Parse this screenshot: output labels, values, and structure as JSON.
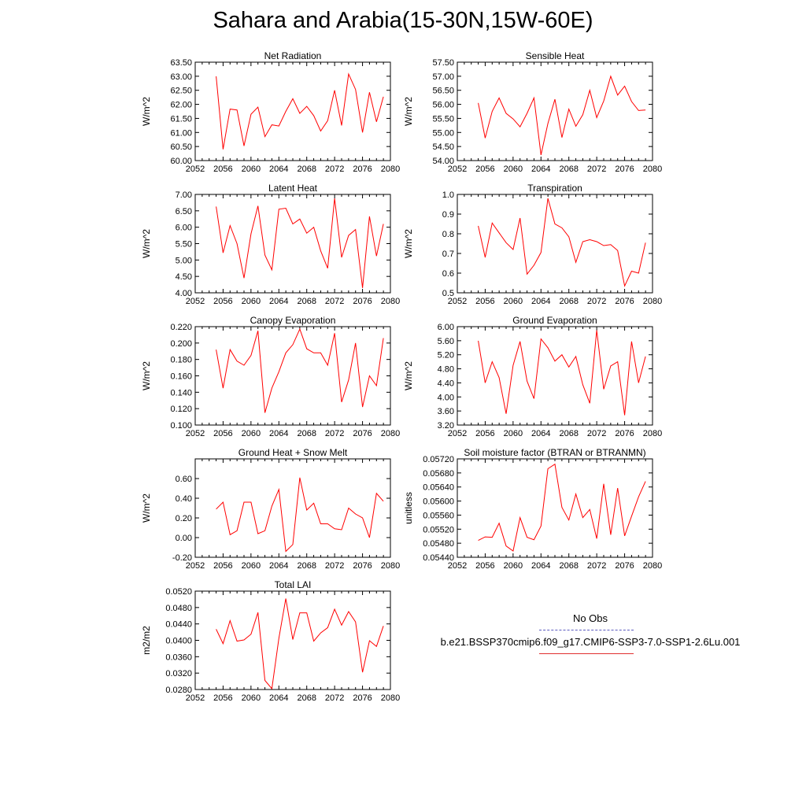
{
  "title": "Sahara and Arabia(15-30N,15W-60E)",
  "legend": {
    "obs_label": "No Obs",
    "case_label": "b.e21.BSSP370cmip6.f09_g17.CMIP6-SSP3-7.0-SSP1-2.6Lu.001",
    "obs_color": "#5b5bbf",
    "case_color": "#ff0000"
  },
  "chart_data": [
    {
      "type": "line",
      "title": "Net Radiation",
      "ylabel": "W/m^2",
      "xlim": [
        2052,
        2080
      ],
      "xticks": [
        "2052",
        "2056",
        "2060",
        "2064",
        "2068",
        "2072",
        "2076",
        "2080"
      ],
      "ylim": [
        60.0,
        63.5
      ],
      "yticks": [
        "60.00",
        "60.50",
        "61.00",
        "61.50",
        "62.00",
        "62.50",
        "63.00",
        "63.50"
      ],
      "x": [
        2055,
        2056,
        2057,
        2058,
        2059,
        2060,
        2061,
        2062,
        2063,
        2064,
        2065,
        2066,
        2067,
        2068,
        2069,
        2070,
        2071,
        2072,
        2073,
        2074,
        2075,
        2076,
        2077,
        2078,
        2079
      ],
      "series": [
        {
          "values": [
            63.0,
            60.4,
            61.83,
            61.8,
            60.52,
            61.65,
            61.9,
            60.85,
            61.27,
            61.23,
            61.75,
            62.2,
            61.68,
            61.93,
            61.6,
            61.05,
            61.42,
            62.5,
            61.25,
            63.08,
            62.53,
            61.0,
            62.43,
            61.38,
            62.27
          ]
        }
      ]
    },
    {
      "type": "line",
      "title": "Sensible Heat",
      "ylabel": "W/m^2",
      "xlim": [
        2052,
        2080
      ],
      "xticks": [
        "2052",
        "2056",
        "2060",
        "2064",
        "2068",
        "2072",
        "2076",
        "2080"
      ],
      "ylim": [
        54.0,
        57.5
      ],
      "yticks": [
        "54.00",
        "54.50",
        "55.00",
        "55.50",
        "56.00",
        "56.50",
        "57.00",
        "57.50"
      ],
      "x": [
        2055,
        2056,
        2057,
        2058,
        2059,
        2060,
        2061,
        2062,
        2063,
        2064,
        2065,
        2066,
        2067,
        2068,
        2069,
        2070,
        2071,
        2072,
        2073,
        2074,
        2075,
        2076,
        2077,
        2078,
        2079
      ],
      "series": [
        {
          "values": [
            56.05,
            54.8,
            55.75,
            56.23,
            55.68,
            55.48,
            55.2,
            55.68,
            56.23,
            54.2,
            55.32,
            56.18,
            54.82,
            55.83,
            55.22,
            55.63,
            56.5,
            55.53,
            56.12,
            57.0,
            56.33,
            56.65,
            56.1,
            55.78,
            55.8
          ]
        }
      ]
    },
    {
      "type": "line",
      "title": "Latent Heat",
      "ylabel": "W/m^2",
      "xlim": [
        2052,
        2080
      ],
      "xticks": [
        "2052",
        "2056",
        "2060",
        "2064",
        "2068",
        "2072",
        "2076",
        "2080"
      ],
      "ylim": [
        4.0,
        7.0
      ],
      "yticks": [
        "4.00",
        "4.50",
        "5.00",
        "5.50",
        "6.00",
        "6.50",
        "7.00"
      ],
      "x": [
        2055,
        2056,
        2057,
        2058,
        2059,
        2060,
        2061,
        2062,
        2063,
        2064,
        2065,
        2066,
        2067,
        2068,
        2069,
        2070,
        2071,
        2072,
        2073,
        2074,
        2075,
        2076,
        2077,
        2078,
        2079
      ],
      "series": [
        {
          "values": [
            6.63,
            5.22,
            6.05,
            5.5,
            4.45,
            5.8,
            6.65,
            5.15,
            4.7,
            6.55,
            6.58,
            6.1,
            6.25,
            5.82,
            6.0,
            5.28,
            4.75,
            6.88,
            5.08,
            5.75,
            5.93,
            4.15,
            6.33,
            5.12,
            6.1
          ]
        }
      ]
    },
    {
      "type": "line",
      "title": "Transpiration",
      "ylabel": "W/m^2",
      "xlim": [
        2052,
        2080
      ],
      "xticks": [
        "2052",
        "2056",
        "2060",
        "2064",
        "2068",
        "2072",
        "2076",
        "2080"
      ],
      "ylim": [
        0.5,
        1.0
      ],
      "yticks": [
        "0.5",
        "0.6",
        "0.7",
        "0.8",
        "0.9",
        "1.0"
      ],
      "x": [
        2055,
        2056,
        2057,
        2058,
        2059,
        2060,
        2061,
        2062,
        2063,
        2064,
        2065,
        2066,
        2067,
        2068,
        2069,
        2070,
        2071,
        2072,
        2073,
        2074,
        2075,
        2076,
        2077,
        2078,
        2079
      ],
      "series": [
        {
          "values": [
            0.84,
            0.68,
            0.855,
            0.805,
            0.755,
            0.72,
            0.88,
            0.595,
            0.64,
            0.705,
            0.98,
            0.85,
            0.83,
            0.785,
            0.655,
            0.76,
            0.77,
            0.76,
            0.74,
            0.745,
            0.715,
            0.535,
            0.61,
            0.6,
            0.755
          ]
        }
      ]
    },
    {
      "type": "line",
      "title": "Canopy Evaporation",
      "ylabel": "W/m^2",
      "xlim": [
        2052,
        2080
      ],
      "xticks": [
        "2052",
        "2056",
        "2060",
        "2064",
        "2068",
        "2072",
        "2076",
        "2080"
      ],
      "ylim": [
        0.1,
        0.22
      ],
      "yticks": [
        "0.100",
        "0.120",
        "0.140",
        "0.160",
        "0.180",
        "0.200",
        "0.220"
      ],
      "x": [
        2055,
        2056,
        2057,
        2058,
        2059,
        2060,
        2061,
        2062,
        2063,
        2064,
        2065,
        2066,
        2067,
        2068,
        2069,
        2070,
        2071,
        2072,
        2073,
        2074,
        2075,
        2076,
        2077,
        2078,
        2079
      ],
      "series": [
        {
          "values": [
            0.192,
            0.145,
            0.192,
            0.178,
            0.173,
            0.185,
            0.215,
            0.115,
            0.145,
            0.165,
            0.188,
            0.198,
            0.217,
            0.193,
            0.188,
            0.188,
            0.173,
            0.212,
            0.128,
            0.155,
            0.2,
            0.122,
            0.16,
            0.148,
            0.206
          ]
        }
      ]
    },
    {
      "type": "line",
      "title": "Ground Evaporation",
      "ylabel": "W/m^2",
      "xlim": [
        2052,
        2080
      ],
      "xticks": [
        "2052",
        "2056",
        "2060",
        "2064",
        "2068",
        "2072",
        "2076",
        "2080"
      ],
      "ylim": [
        3.2,
        6.0
      ],
      "yticks": [
        "3.20",
        "3.60",
        "4.00",
        "4.40",
        "4.80",
        "5.20",
        "5.60",
        "6.00"
      ],
      "x": [
        2055,
        2056,
        2057,
        2058,
        2059,
        2060,
        2061,
        2062,
        2063,
        2064,
        2065,
        2066,
        2067,
        2068,
        2069,
        2070,
        2071,
        2072,
        2073,
        2074,
        2075,
        2076,
        2077,
        2078,
        2079
      ],
      "series": [
        {
          "values": [
            5.6,
            4.4,
            5.0,
            4.55,
            3.52,
            4.9,
            5.58,
            4.45,
            3.95,
            5.65,
            5.4,
            5.02,
            5.2,
            4.85,
            5.15,
            4.35,
            3.82,
            5.9,
            4.22,
            4.88,
            5.0,
            3.48,
            5.58,
            4.4,
            5.15
          ]
        }
      ]
    },
    {
      "type": "line",
      "title": "Ground Heat + Snow Melt",
      "ylabel": "W/m^2",
      "xlim": [
        2052,
        2080
      ],
      "xticks": [
        "2052",
        "2056",
        "2060",
        "2064",
        "2068",
        "2072",
        "2076",
        "2080"
      ],
      "ylim": [
        -0.2,
        0.8
      ],
      "yticks": [
        "-0.20",
        "0.00",
        "0.20",
        "0.40",
        "0.60"
      ],
      "ytickvalues": [
        -0.2,
        0.0,
        0.2,
        0.4,
        0.6
      ],
      "x": [
        2055,
        2056,
        2057,
        2058,
        2059,
        2060,
        2061,
        2062,
        2063,
        2064,
        2065,
        2066,
        2067,
        2068,
        2069,
        2070,
        2071,
        2072,
        2073,
        2074,
        2075,
        2076,
        2077,
        2078,
        2079
      ],
      "series": [
        {
          "values": [
            0.29,
            0.36,
            0.03,
            0.07,
            0.36,
            0.36,
            0.04,
            0.07,
            0.32,
            0.49,
            -0.14,
            -0.07,
            0.61,
            0.28,
            0.35,
            0.14,
            0.14,
            0.09,
            0.08,
            0.3,
            0.24,
            0.2,
            0.0,
            0.45,
            0.37
          ]
        }
      ]
    },
    {
      "type": "line",
      "title": "Soil moisture factor (BTRAN or BTRANMN)",
      "ylabel": "unitless",
      "xlim": [
        2052,
        2080
      ],
      "xticks": [
        "2052",
        "2056",
        "2060",
        "2064",
        "2068",
        "2072",
        "2076",
        "2080"
      ],
      "ylim": [
        0.0544,
        0.0572
      ],
      "yticks": [
        "0.05440",
        "0.05480",
        "0.05520",
        "0.05560",
        "0.05600",
        "0.05640",
        "0.05680",
        "0.05720"
      ],
      "x": [
        2055,
        2056,
        2057,
        2058,
        2059,
        2060,
        2061,
        2062,
        2063,
        2064,
        2065,
        2066,
        2067,
        2068,
        2069,
        2070,
        2071,
        2072,
        2073,
        2074,
        2075,
        2076,
        2077,
        2078,
        2079
      ],
      "series": [
        {
          "values": [
            0.05488,
            0.05498,
            0.05497,
            0.05537,
            0.05472,
            0.05458,
            0.05553,
            0.05497,
            0.0549,
            0.05529,
            0.05692,
            0.05705,
            0.05582,
            0.05546,
            0.0562,
            0.05553,
            0.05576,
            0.05493,
            0.05649,
            0.05504,
            0.05637,
            0.05501,
            0.05557,
            0.05612,
            0.05656
          ]
        }
      ]
    },
    {
      "type": "line",
      "title": "Total LAI",
      "ylabel": "m2/m2",
      "xlim": [
        2052,
        2080
      ],
      "xticks": [
        "2052",
        "2056",
        "2060",
        "2064",
        "2068",
        "2072",
        "2076",
        "2080"
      ],
      "ylim": [
        0.028,
        0.052
      ],
      "yticks": [
        "0.0280",
        "0.0320",
        "0.0360",
        "0.0400",
        "0.0440",
        "0.0480",
        "0.0520"
      ],
      "x": [
        2055,
        2056,
        2057,
        2058,
        2059,
        2060,
        2061,
        2062,
        2063,
        2064,
        2065,
        2066,
        2067,
        2068,
        2069,
        2070,
        2071,
        2072,
        2073,
        2074,
        2075,
        2076,
        2077,
        2078,
        2079
      ],
      "series": [
        {
          "values": [
            0.0427,
            0.0392,
            0.0448,
            0.0398,
            0.0401,
            0.0415,
            0.0468,
            0.0302,
            0.0282,
            0.0405,
            0.0502,
            0.0402,
            0.0467,
            0.0467,
            0.0398,
            0.0418,
            0.0431,
            0.0476,
            0.0437,
            0.047,
            0.0445,
            0.0322,
            0.0399,
            0.0385,
            0.0435
          ]
        }
      ]
    }
  ]
}
